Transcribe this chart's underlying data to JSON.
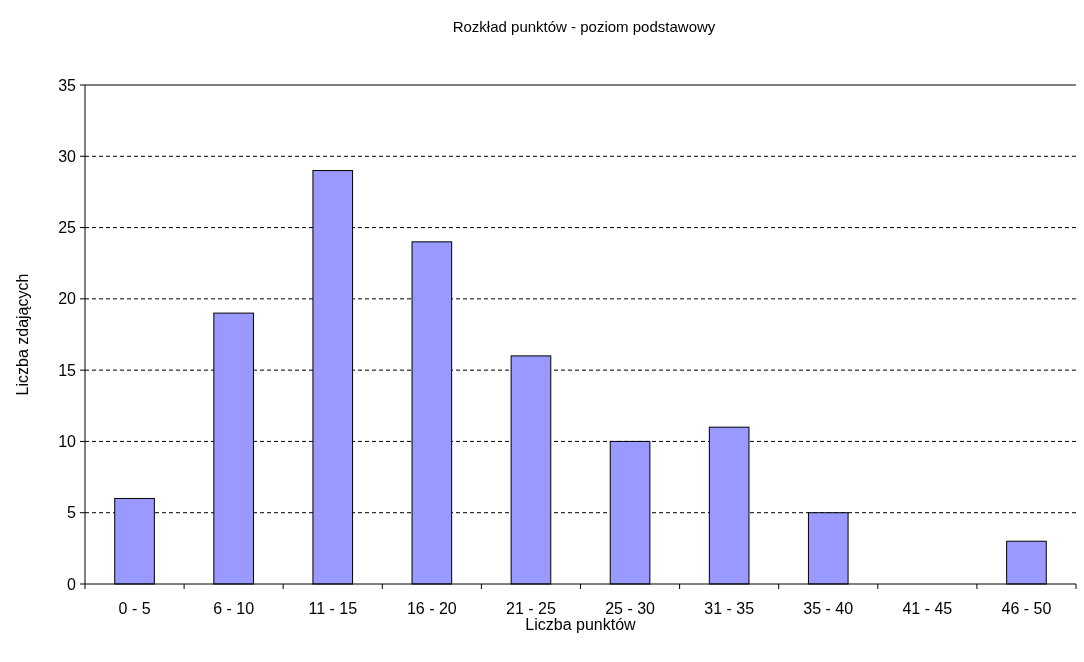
{
  "chart_data": {
    "type": "bar",
    "title": "Rozkład punktów - poziom podstawowy",
    "xlabel": "Liczba punktów",
    "ylabel": "Liczba zdających",
    "categories": [
      "0 - 5",
      "6 - 10",
      "11 - 15",
      "16 - 20",
      "21 - 25",
      "25 - 30",
      "31 - 35",
      "35 - 40",
      "41 - 45",
      "46 - 50"
    ],
    "values": [
      6,
      19,
      29,
      24,
      16,
      10,
      11,
      5,
      0,
      3
    ],
    "color": "#9999ff",
    "ylim": [
      0,
      35
    ],
    "yticks": [
      0,
      5,
      10,
      15,
      20,
      25,
      30,
      35
    ],
    "grid": "y"
  }
}
